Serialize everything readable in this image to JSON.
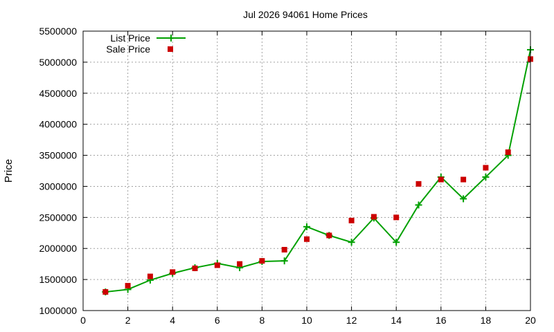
{
  "chart_data": {
    "type": "line",
    "title": "Jul 2026 94061 Home Prices",
    "xlabel": "",
    "ylabel": "Price",
    "xlim": [
      0,
      20
    ],
    "ylim": [
      1000000,
      5500000
    ],
    "x_ticks": [
      0,
      2,
      4,
      6,
      8,
      10,
      12,
      14,
      16,
      18,
      20
    ],
    "y_ticks": [
      1000000,
      1500000,
      2000000,
      2500000,
      3000000,
      3500000,
      4000000,
      4500000,
      5000000,
      5500000
    ],
    "grid": true,
    "legend_position": "top-left",
    "x": [
      1,
      2,
      3,
      4,
      5,
      6,
      7,
      8,
      9,
      10,
      11,
      12,
      13,
      14,
      15,
      16,
      17,
      18,
      19,
      20
    ],
    "series": [
      {
        "name": "List Price",
        "style": "line-with-plus-markers",
        "color": "#00a000",
        "values": [
          1300000,
          1340000,
          1490000,
          1600000,
          1690000,
          1760000,
          1690000,
          1790000,
          1800000,
          2350000,
          2210000,
          2100000,
          2490000,
          2100000,
          2700000,
          3150000,
          2800000,
          3150000,
          3500000,
          5200000
        ]
      },
      {
        "name": "Sale Price",
        "style": "square-markers",
        "color": "#cc0000",
        "values": [
          1300000,
          1400000,
          1550000,
          1620000,
          1680000,
          1730000,
          1750000,
          1800000,
          1980000,
          2150000,
          2210000,
          2450000,
          2510000,
          2500000,
          3040000,
          3110000,
          3110000,
          3300000,
          3550000,
          5050000
        ]
      }
    ]
  }
}
